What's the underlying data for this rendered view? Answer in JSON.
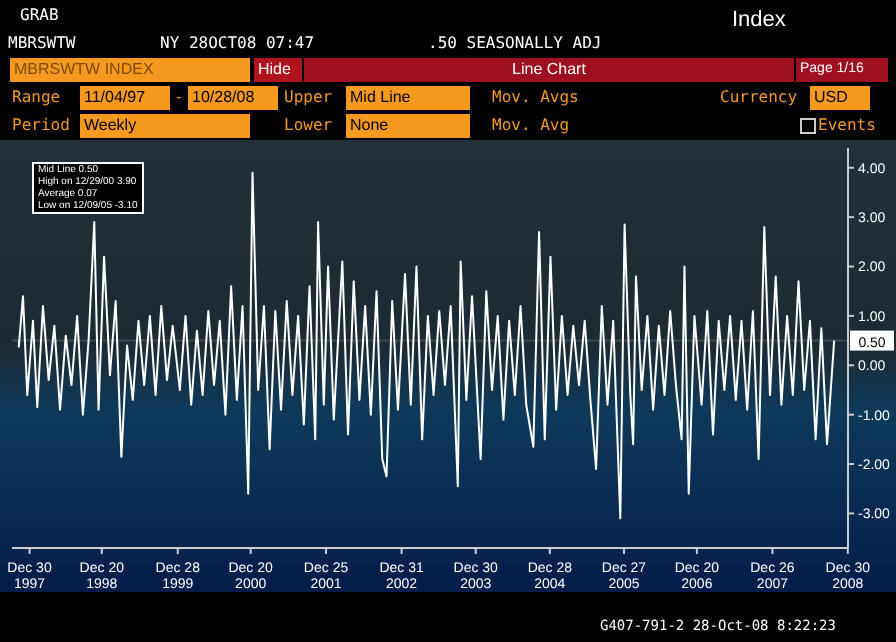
{
  "chart_data": {
    "type": "line",
    "title": "Line Chart",
    "annotations": [
      "GRAB",
      "MBRSWTW",
      "NY 28OCT08 07:47",
      ".50 SEASONALLY ADJ",
      "Index",
      "MBRSWTW INDEX",
      "Hide",
      "Page 1/16",
      "Range",
      "11/04/97",
      "-",
      "10/28/08",
      "Upper",
      "Mid Line",
      "Mov. Avgs",
      "Currency",
      "USD",
      "Period",
      "Weekly",
      "Lower",
      "None",
      "Mov. Avg",
      "Events",
      "Mid Line 0.50",
      "High on 12/29/00 3.90",
      "Average 0.07",
      "Low on 12/09/05 -3.10",
      "G407-791-2 28-Oct-08 8:22:23"
    ],
    "x": [
      "1997-11-07",
      "1997-11-28",
      "1997-12-19",
      "1998-01-16",
      "1998-02-06",
      "1998-03-06",
      "1998-04-03",
      "1998-05-01",
      "1998-05-29",
      "1998-06-26",
      "1998-07-24",
      "1998-08-21",
      "1998-09-18",
      "1998-10-16",
      "1998-11-13",
      "1998-12-04",
      "1998-12-31",
      "1999-01-29",
      "1999-02-26",
      "1999-03-26",
      "1999-04-23",
      "1999-05-21",
      "1999-06-18",
      "1999-07-16",
      "1999-08-13",
      "1999-09-10",
      "1999-10-08",
      "1999-11-05",
      "1999-12-03",
      "2000-01-07",
      "2000-02-04",
      "2000-03-03",
      "2000-03-31",
      "2000-04-28",
      "2000-05-26",
      "2000-06-23",
      "2000-07-21",
      "2000-08-18",
      "2000-09-15",
      "2000-10-13",
      "2000-11-10",
      "2000-12-08",
      "2000-12-29",
      "2001-01-26",
      "2001-02-23",
      "2001-03-23",
      "2001-04-20",
      "2001-05-18",
      "2001-06-15",
      "2001-07-13",
      "2001-08-10",
      "2001-09-07",
      "2001-10-05",
      "2001-11-02",
      "2001-11-16",
      "2001-12-14",
      "2002-01-04",
      "2002-02-01",
      "2002-03-15",
      "2002-04-12",
      "2002-05-10",
      "2002-06-07",
      "2002-07-05",
      "2002-08-02",
      "2002-08-30",
      "2002-09-27",
      "2002-10-18",
      "2002-11-15",
      "2002-12-13",
      "2003-01-17",
      "2003-02-14",
      "2003-03-14",
      "2003-04-11",
      "2003-05-09",
      "2003-06-06",
      "2003-07-04",
      "2003-08-01",
      "2003-08-29",
      "2003-10-03",
      "2003-10-17",
      "2003-11-14",
      "2003-12-12",
      "2004-01-23",
      "2004-02-20",
      "2004-03-19",
      "2004-04-16",
      "2004-05-14",
      "2004-06-11",
      "2004-07-09",
      "2004-08-06",
      "2004-09-03",
      "2004-10-08",
      "2004-11-05",
      "2004-12-03",
      "2004-12-31",
      "2005-01-28",
      "2005-02-25",
      "2005-03-25",
      "2005-04-22",
      "2005-05-20",
      "2005-06-17",
      "2005-07-15",
      "2005-08-12",
      "2005-09-09",
      "2005-10-07",
      "2005-11-04",
      "2005-12-09",
      "2005-12-30",
      "2006-01-27",
      "2006-02-10",
      "2006-02-24",
      "2006-03-24",
      "2006-04-21",
      "2006-05-19",
      "2006-06-16",
      "2006-07-14",
      "2006-08-11",
      "2006-09-08",
      "2006-10-06",
      "2006-10-20",
      "2006-11-10",
      "2006-12-08",
      "2007-01-12",
      "2007-02-09",
      "2007-03-09",
      "2007-04-06",
      "2007-05-04",
      "2007-06-01",
      "2007-06-29",
      "2007-07-27",
      "2007-08-24",
      "2007-09-21",
      "2007-10-19",
      "2007-11-16",
      "2007-12-14",
      "2008-01-11",
      "2008-02-08",
      "2008-03-07",
      "2008-04-04",
      "2008-05-02",
      "2008-05-30",
      "2008-06-27",
      "2008-07-25",
      "2008-08-22",
      "2008-09-19",
      "2008-10-24"
    ],
    "series": [
      {
        "color": "#ffffff",
        "values": [
          0.36,
          1.4,
          -0.6,
          0.9,
          -0.85,
          1.2,
          -0.3,
          0.8,
          -0.9,
          0.6,
          -0.4,
          1.0,
          -1.0,
          0.5,
          2.9,
          -0.9,
          2.2,
          -0.2,
          1.3,
          -1.85,
          0.4,
          -0.7,
          0.9,
          -0.4,
          1.0,
          -0.6,
          1.2,
          -0.3,
          0.8,
          -0.5,
          1.0,
          -0.8,
          0.7,
          -0.6,
          1.1,
          -0.4,
          0.9,
          -1.0,
          1.6,
          -0.7,
          1.2,
          -2.6,
          3.9,
          -0.5,
          1.2,
          -1.7,
          1.1,
          -0.9,
          1.3,
          -0.6,
          1.0,
          -1.2,
          1.6,
          -1.5,
          2.9,
          -0.8,
          2.0,
          -1.1,
          2.1,
          -1.4,
          1.7,
          -0.7,
          1.2,
          -1.0,
          1.5,
          -1.9,
          -2.25,
          1.3,
          -0.9,
          1.85,
          -0.8,
          2.0,
          -1.5,
          1.0,
          -0.6,
          1.1,
          -0.4,
          1.2,
          -2.45,
          2.1,
          -0.7,
          1.4,
          -1.9,
          1.5,
          -0.5,
          1.0,
          -1.1,
          0.9,
          -0.6,
          1.2,
          -0.8,
          -1.65,
          2.7,
          -1.5,
          2.2,
          -0.9,
          1.0,
          -0.6,
          0.8,
          -0.4,
          0.9,
          -0.7,
          -2.1,
          1.2,
          -0.8,
          0.9,
          -3.1,
          2.85,
          -0.6,
          -1.6,
          1.8,
          -0.5,
          1.0,
          -0.9,
          0.8,
          -0.6,
          1.1,
          -0.4,
          -1.5,
          2.0,
          -2.6,
          1.0,
          -0.8,
          1.1,
          -1.4,
          0.9,
          -0.5,
          1.0,
          -0.7,
          0.9,
          -0.9,
          1.1,
          -1.9,
          2.8,
          -0.6,
          1.8,
          -0.8,
          1.0,
          -0.6,
          1.7,
          -0.5,
          0.9,
          -1.5,
          0.75,
          -1.6,
          0.5
        ]
      }
    ],
    "xlim": [
      "1997-10-05",
      "2008-12-31"
    ],
    "xticks": [
      {
        "value": "1997-12-30",
        "label": "Dec 30 1997"
      },
      {
        "value": "1998-12-20",
        "label": "Dec 20 1998"
      },
      {
        "value": "1999-12-28",
        "label": "Dec 28 1999"
      },
      {
        "value": "2000-12-20",
        "label": "Dec 20 2000"
      },
      {
        "value": "2001-12-25",
        "label": "Dec 25 2001"
      },
      {
        "value": "2002-12-31",
        "label": "Dec 31 2002"
      },
      {
        "value": "2003-12-30",
        "label": "Dec 30 2003"
      },
      {
        "value": "2004-12-28",
        "label": "Dec 28 2004"
      },
      {
        "value": "2005-12-27",
        "label": "Dec 27 2005"
      },
      {
        "value": "2006-12-20",
        "label": "Dec 20 2006"
      },
      {
        "value": "2007-12-26",
        "label": "Dec 26 2007"
      },
      {
        "value": "2008-12-30",
        "label": "Dec 30 2008"
      }
    ],
    "ylim": [
      -3.7,
      4.4
    ],
    "yticks": [
      {
        "value": -3,
        "label": "-3.00"
      },
      {
        "value": -2,
        "label": "-2.00"
      },
      {
        "value": -1,
        "label": "-1.00"
      },
      {
        "value": 0,
        "label": "0.00"
      },
      {
        "value": 1,
        "label": "1.00"
      },
      {
        "value": 2,
        "label": "2.00"
      },
      {
        "value": 3,
        "label": "3.00"
      },
      {
        "value": 4,
        "label": "4.00"
      }
    ],
    "ref_lines": [
      {
        "axis": "y",
        "value": 0.5,
        "label": "0.50",
        "color": "#3a4a55"
      }
    ],
    "marker": "none",
    "line_style": "solid"
  }
}
